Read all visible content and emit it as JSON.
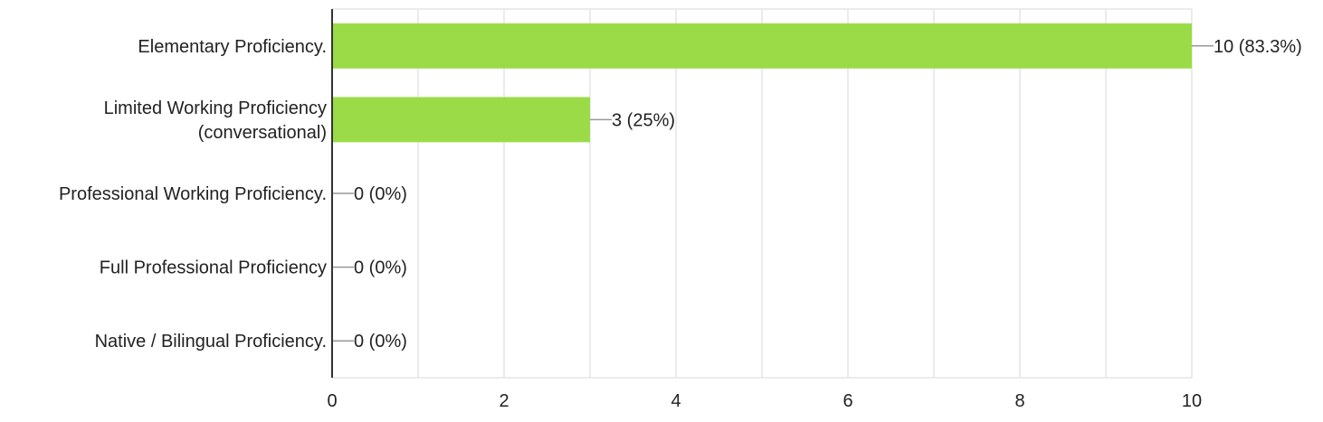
{
  "chart_data": {
    "type": "bar",
    "orientation": "horizontal",
    "categories": [
      [
        "Elementary Proficiency."
      ],
      [
        "Limited Working Proficiency",
        "(conversational)"
      ],
      [
        "Professional Working Proficiency."
      ],
      [
        "Full Professional Proficiency"
      ],
      [
        "Native / Bilingual Proficiency."
      ]
    ],
    "values": [
      10,
      3,
      0,
      0,
      0
    ],
    "data_labels": [
      "10 (83.3%)",
      "3 (25%)",
      "0 (0%)",
      "0 (0%)",
      "0 (0%)"
    ],
    "xlim": [
      0,
      10
    ],
    "x_ticks": [
      0,
      2,
      4,
      6,
      8,
      10
    ],
    "grid": true,
    "grid_step": 1,
    "bar_color": "#9cdb48",
    "grid_color": "#ebebeb",
    "axis_color": "#333333",
    "title": "",
    "xlabel": "",
    "ylabel": ""
  }
}
